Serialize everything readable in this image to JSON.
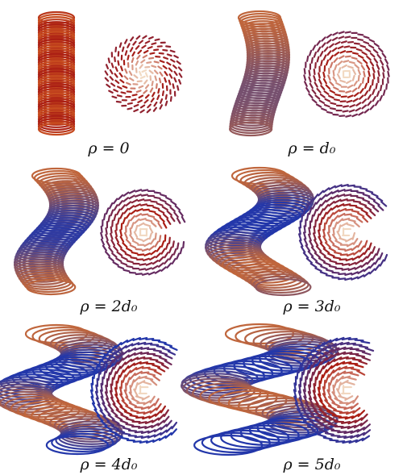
{
  "panels": [
    {
      "caption": "ρ = 0"
    },
    {
      "caption": "ρ = d₀"
    },
    {
      "caption": "ρ = 2d₀"
    },
    {
      "caption": "ρ = 3d₀"
    },
    {
      "caption": "ρ = 4d₀"
    },
    {
      "caption": "ρ = 5d₀"
    }
  ]
}
